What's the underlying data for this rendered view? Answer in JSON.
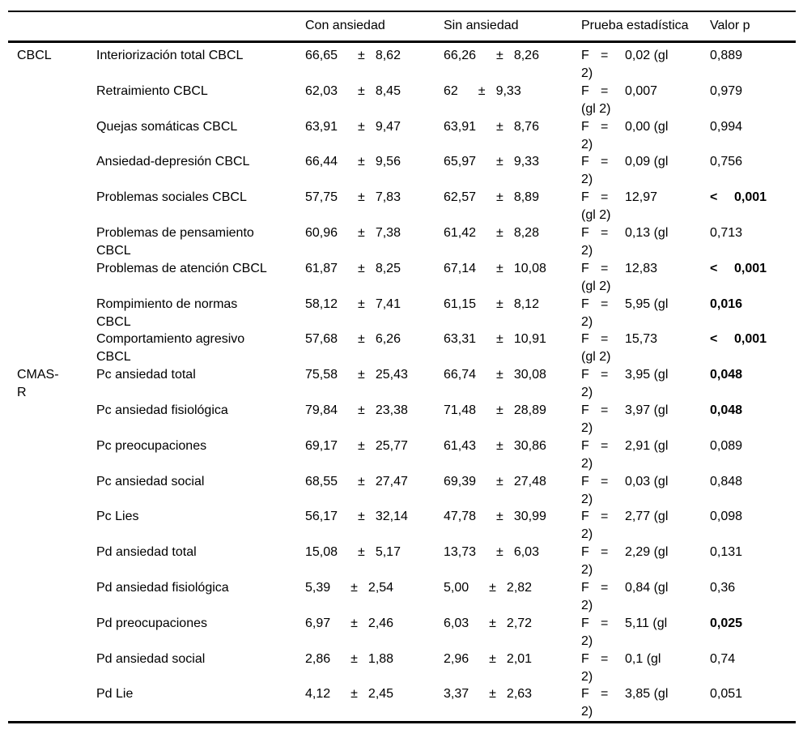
{
  "symbols": {
    "plus_minus": "±",
    "f_label": "F",
    "equals": "=",
    "less_than": "<"
  },
  "header": {
    "group": "",
    "measure": "",
    "con": "Con ansiedad",
    "sin": "Sin ansiedad",
    "stat": "Prueba estadística",
    "p": "Valor p"
  },
  "rows": [
    {
      "group": "CBCL",
      "measure": "Interiorización total CBCL",
      "con_mean": "66,65",
      "con_sd": "8,62",
      "sin_mean": "66,26",
      "sin_sd": "8,26",
      "stat_value": "0,02 (gl 2)",
      "p_value": "0,889",
      "p_lt": false,
      "p_bold": false
    },
    {
      "group": "",
      "measure": "Retraimiento CBCL",
      "con_mean": "62,03",
      "con_sd": "8,45",
      "sin_mean": "62",
      "sin_sd": "9,33",
      "stat_value": "0,007 (gl 2)",
      "p_value": "0,979",
      "p_lt": false,
      "p_bold": false
    },
    {
      "group": "",
      "measure": "Quejas somáticas CBCL",
      "con_mean": "63,91",
      "con_sd": "9,47",
      "sin_mean": "63,91",
      "sin_sd": "8,76",
      "stat_value": "0,00 (gl 2)",
      "p_value": "0,994",
      "p_lt": false,
      "p_bold": false
    },
    {
      "group": "",
      "measure": "Ansiedad-depresión CBCL",
      "con_mean": "66,44",
      "con_sd": "9,56",
      "sin_mean": "65,97",
      "sin_sd": "9,33",
      "stat_value": "0,09 (gl 2)",
      "p_value": "0,756",
      "p_lt": false,
      "p_bold": false
    },
    {
      "group": "",
      "measure": "Problemas sociales CBCL",
      "con_mean": "57,75",
      "con_sd": "7,83",
      "sin_mean": "62,57",
      "sin_sd": "8,89",
      "stat_value": "12,97 (gl 2)",
      "p_value": "0,001",
      "p_lt": true,
      "p_bold": true
    },
    {
      "group": "",
      "measure": "Problemas de pensamiento CBCL",
      "con_mean": "60,96",
      "con_sd": "7,38",
      "sin_mean": "61,42",
      "sin_sd": "8,28",
      "stat_value": "0,13 (gl 2)",
      "p_value": "0,713",
      "p_lt": false,
      "p_bold": false
    },
    {
      "group": "",
      "measure": "Problemas de atención CBCL",
      "con_mean": "61,87",
      "con_sd": "8,25",
      "sin_mean": "67,14",
      "sin_sd": "10,08",
      "stat_value": "12,83 (gl 2)",
      "p_value": "0,001",
      "p_lt": true,
      "p_bold": true
    },
    {
      "group": "",
      "measure": "Rompimiento de normas CBCL",
      "con_mean": "58,12",
      "con_sd": "7,41",
      "sin_mean": "61,15",
      "sin_sd": "8,12",
      "stat_value": "5,95 (gl 2)",
      "p_value": "0,016",
      "p_lt": false,
      "p_bold": true
    },
    {
      "group": "",
      "measure": "Comportamiento agresivo CBCL",
      "con_mean": "57,68",
      "con_sd": "6,26",
      "sin_mean": "63,31",
      "sin_sd": "10,91",
      "stat_value": "15,73 (gl 2)",
      "p_value": "0,001",
      "p_lt": true,
      "p_bold": true
    },
    {
      "group": "CMAS-R",
      "measure": "Pc ansiedad total",
      "con_mean": "75,58",
      "con_sd": "25,43",
      "sin_mean": "66,74",
      "sin_sd": "30,08",
      "stat_value": "3,95 (gl 2)",
      "p_value": "0,048",
      "p_lt": false,
      "p_bold": true
    },
    {
      "group": "",
      "measure": "Pc ansiedad fisiológica",
      "con_mean": "79,84",
      "con_sd": "23,38",
      "sin_mean": "71,48",
      "sin_sd": "28,89",
      "stat_value": "3,97 (gl 2)",
      "p_value": "0,048",
      "p_lt": false,
      "p_bold": true
    },
    {
      "group": "",
      "measure": "Pc preocupaciones",
      "con_mean": "69,17",
      "con_sd": "25,77",
      "sin_mean": "61,43",
      "sin_sd": "30,86",
      "stat_value": "2,91 (gl 2)",
      "p_value": "0,089",
      "p_lt": false,
      "p_bold": false
    },
    {
      "group": "",
      "measure": "Pc ansiedad social",
      "con_mean": "68,55",
      "con_sd": "27,47",
      "sin_mean": "69,39",
      "sin_sd": "27,48",
      "stat_value": "0,03 (gl 2)",
      "p_value": "0,848",
      "p_lt": false,
      "p_bold": false
    },
    {
      "group": "",
      "measure": "Pc Lies",
      "con_mean": "56,17",
      "con_sd": "32,14",
      "sin_mean": "47,78",
      "sin_sd": "30,99",
      "stat_value": "2,77 (gl 2)",
      "p_value": "0,098",
      "p_lt": false,
      "p_bold": false
    },
    {
      "group": "",
      "measure": "Pd ansiedad total",
      "con_mean": "15,08",
      "con_sd": "5,17",
      "sin_mean": "13,73",
      "sin_sd": "6,03",
      "stat_value": "2,29 (gl 2)",
      "p_value": "0,131",
      "p_lt": false,
      "p_bold": false
    },
    {
      "group": "",
      "measure": "Pd ansiedad fisiológica",
      "con_mean": "5,39",
      "con_sd": "2,54",
      "sin_mean": "5,00",
      "sin_sd": "2,82",
      "stat_value": "0,84 (gl 2)",
      "p_value": "0,36",
      "p_lt": false,
      "p_bold": false
    },
    {
      "group": "",
      "measure": "Pd preocupaciones",
      "con_mean": "6,97",
      "con_sd": "2,46",
      "sin_mean": "6,03",
      "sin_sd": "2,72",
      "stat_value": "5,11 (gl 2)",
      "p_value": "0,025",
      "p_lt": false,
      "p_bold": true
    },
    {
      "group": "",
      "measure": "Pd ansiedad social",
      "con_mean": "2,86",
      "con_sd": "1,88",
      "sin_mean": "2,96",
      "sin_sd": "2,01",
      "stat_value": "0,1 (gl 2)",
      "p_value": "0,74",
      "p_lt": false,
      "p_bold": false
    },
    {
      "group": "",
      "measure": "Pd Lie",
      "con_mean": "4,12",
      "con_sd": "2,45",
      "sin_mean": "3,37",
      "sin_sd": "2,63",
      "stat_value": "3,85 (gl 2)",
      "p_value": "0,051",
      "p_lt": false,
      "p_bold": false
    }
  ]
}
